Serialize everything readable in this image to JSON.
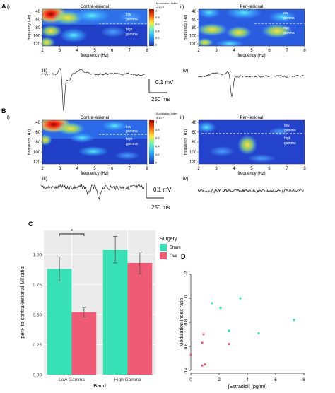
{
  "panel_letters": {
    "A": "A",
    "B": "B",
    "C": "C",
    "D": "D"
  },
  "sub_labels": {
    "i": "i)",
    "ii": "ii)",
    "iii": "iii)",
    "iv": "iv)"
  },
  "heatmap_common": {
    "xlabel": "frequency (Hz)",
    "ylabel": "frequency (Hz)",
    "xticks": [
      "2",
      "3",
      "4",
      "5",
      "6",
      "7",
      "8"
    ],
    "yticks": [
      "40",
      "60",
      "80",
      "100",
      "120"
    ],
    "band_low": "low",
    "band_low2": "gamma",
    "band_high": "high",
    "band_high2": "gamma",
    "colorbar_title": "Modulation Index",
    "colorbar_exp": "x 10⁻³",
    "colorbar_ticks": [
      "1",
      "0.8",
      "0.6",
      "0.4",
      "0.2",
      "0"
    ]
  },
  "panel_titles": {
    "A_i": "Contra-lesional",
    "A_ii": "Peri-lesional",
    "B_i": "Contra-lesional",
    "B_ii": "Peri-lesional"
  },
  "scalebar": {
    "voltage": "0.1 mV",
    "time": "250 ms"
  },
  "colors": {
    "sham": "#38E1B5",
    "ovx": "#EF5B74",
    "panel_bg": "#EBEBEB",
    "heat_low": "#1F2FAE",
    "heat_high": "#A40000"
  },
  "chart_data": [
    {
      "type": "bar",
      "panel": "C",
      "categories": [
        "Low Gamma",
        "High Gamma"
      ],
      "series": [
        {
          "name": "Sham",
          "values": [
            0.88,
            1.04
          ],
          "errors": [
            0.1,
            0.11
          ]
        },
        {
          "name": "Ovx",
          "values": [
            0.52,
            0.93
          ],
          "errors": [
            0.04,
            0.09
          ]
        }
      ],
      "xlabel": "Band",
      "ylabel": "peri- to contra-lesional MI ratio",
      "ylim": [
        0,
        1.2
      ],
      "yticks": [
        "0.00",
        "0.25",
        "0.50",
        "0.75",
        "1.00"
      ],
      "legend_title": "Surgery",
      "legend_position": "right",
      "significance": "*",
      "grid": true
    },
    {
      "type": "scatter",
      "panel": "D",
      "xlabel": "[Estradiol] (pg/ml)",
      "ylabel": "Modulation Index ratio",
      "xlim": [
        0,
        8
      ],
      "ylim": [
        0.4,
        1.2
      ],
      "xticks": [
        "0",
        "2",
        "4",
        "6",
        "8"
      ],
      "yticks": [
        "0.4",
        "0.6",
        "0.8",
        "1.0",
        "1.2"
      ],
      "series": [
        {
          "name": "Sham",
          "points": [
            [
              1.5,
              0.96
            ],
            [
              2.1,
              0.92
            ],
            [
              2.7,
              0.73
            ],
            [
              3.5,
              1.0
            ],
            [
              4.8,
              0.71
            ],
            [
              7.3,
              0.82
            ]
          ]
        },
        {
          "name": "Ovx",
          "points": [
            [
              0.0,
              0.53
            ],
            [
              0.8,
              0.63
            ],
            [
              0.9,
              0.7
            ],
            [
              0.8,
              0.44
            ],
            [
              1.0,
              0.45
            ],
            [
              2.7,
              0.62
            ]
          ]
        }
      ]
    }
  ]
}
